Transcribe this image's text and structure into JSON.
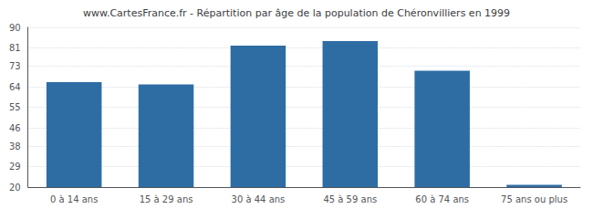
{
  "chart_data": {
    "type": "bar",
    "title": "www.CartesFrance.fr - Répartition par âge de la population de Chéronvilliers en 1999",
    "categories": [
      "0 à 14 ans",
      "15 à 29 ans",
      "30 à 44 ans",
      "45 à 59 ans",
      "60 à 74 ans",
      "75 ans ou plus"
    ],
    "values": [
      66,
      65,
      82,
      84,
      71,
      21
    ],
    "color": "#2e6da4",
    "ylim": [
      20,
      90
    ],
    "yticks": [
      20,
      29,
      38,
      46,
      55,
      64,
      73,
      81,
      90
    ],
    "grid": true
  }
}
